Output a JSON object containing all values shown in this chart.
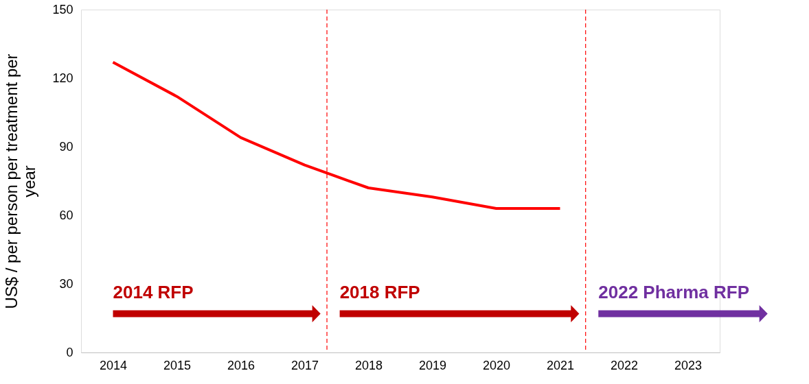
{
  "chart_data": {
    "type": "line",
    "ylabel": "US$ / per person per treatment per year",
    "x": [
      2014,
      2015,
      2016,
      2017,
      2018,
      2019,
      2020,
      2021
    ],
    "series": [
      {
        "color": "#ff0000",
        "values": [
          127,
          112,
          94,
          82,
          72,
          68,
          63,
          63
        ]
      }
    ],
    "xlim": [
      2013.5,
      2023.5
    ],
    "xticks": [
      2014,
      2015,
      2016,
      2017,
      2018,
      2019,
      2020,
      2021,
      2022,
      2023
    ],
    "ylim": [
      0,
      150
    ],
    "yticks": [
      0,
      30,
      60,
      90,
      120,
      150
    ],
    "grid": false,
    "marker": "none",
    "line_style": "solid",
    "ref_lines": [
      {
        "axis": "x",
        "value": 2017.35,
        "color": "#ff0000",
        "line_style": "dashed"
      },
      {
        "axis": "x",
        "value": 2021.4,
        "color": "#ff0000",
        "line_style": "dashed"
      }
    ],
    "annotations": [
      "2014 RFP",
      "2018 RFP",
      "2022 Pharma RFP"
    ]
  }
}
